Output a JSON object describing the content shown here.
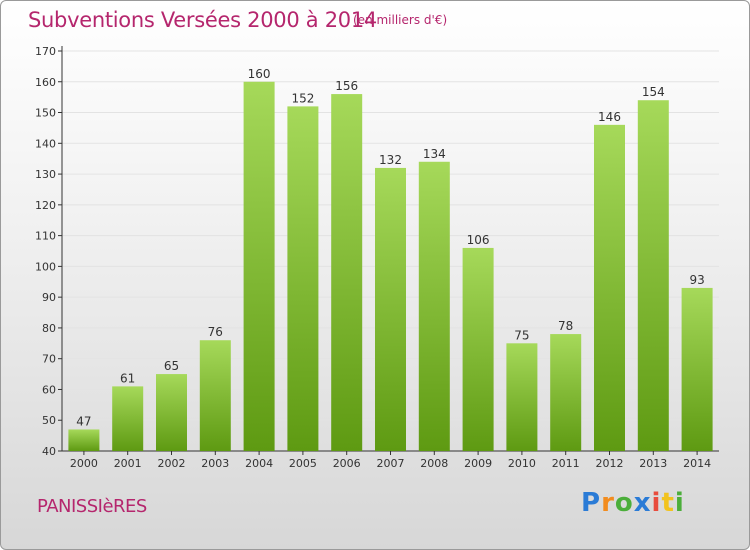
{
  "title": "Subventions Versées 2000 à 2014",
  "subtitle": "(en milliers d'€)",
  "commune": "PANISSIèRES",
  "logo": {
    "text": "Proxiti",
    "colors": [
      "#2a7bd6",
      "#f28c1e",
      "#4bae3a",
      "#2a7bd6",
      "#e84c3d",
      "#f2c31e",
      "#4bae3a"
    ]
  },
  "colors": {
    "title": "#b5266d",
    "bar_light": "#a6d95a",
    "bar_dark": "#5e9a12",
    "grid": "#e3e3e3",
    "axis": "#333333"
  },
  "chart_data": {
    "type": "bar",
    "categories": [
      "2000",
      "2001",
      "2002",
      "2003",
      "2004",
      "2005",
      "2006",
      "2007",
      "2008",
      "2009",
      "2010",
      "2011",
      "2012",
      "2013",
      "2014"
    ],
    "values": [
      47,
      61,
      65,
      76,
      160,
      152,
      156,
      132,
      134,
      106,
      75,
      78,
      146,
      154,
      93
    ],
    "ylim": [
      40,
      170
    ],
    "yticks": [
      40,
      50,
      60,
      70,
      80,
      90,
      100,
      110,
      120,
      130,
      140,
      150,
      160,
      170
    ],
    "grid": true,
    "data_labels": true
  }
}
